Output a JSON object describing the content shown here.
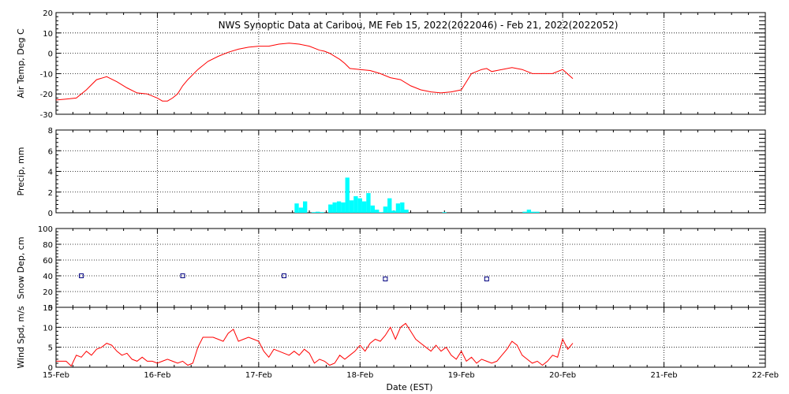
{
  "chart_data": {
    "title": "NWS Synoptic Data at Caribou, ME   Feb 15, 2022(2022046) - Feb 21, 2022(2022052)",
    "type": "multi-panel",
    "x_axis": {
      "label": "Date (EST)",
      "range_days": [
        0,
        7
      ],
      "tick_labels": [
        "15-Feb",
        "16-Feb",
        "17-Feb",
        "18-Feb",
        "19-Feb",
        "20-Feb",
        "21-Feb",
        "22-Feb"
      ]
    },
    "panels": [
      {
        "type": "line",
        "ylabel": "Air Temp, Deg C",
        "ylim": [
          -30,
          20
        ],
        "yticks": [
          -30,
          -20,
          -10,
          0,
          10,
          20
        ],
        "color": "#ff0000",
        "x": [
          0.0,
          0.1,
          0.2,
          0.3,
          0.4,
          0.5,
          0.6,
          0.7,
          0.8,
          0.9,
          1.0,
          1.05,
          1.1,
          1.15,
          1.2,
          1.25,
          1.3,
          1.4,
          1.5,
          1.6,
          1.7,
          1.8,
          1.9,
          2.0,
          2.1,
          2.2,
          2.3,
          2.4,
          2.5,
          2.6,
          2.65,
          2.7,
          2.8,
          2.85,
          2.9,
          3.0,
          3.1,
          3.2,
          3.3,
          3.4,
          3.5,
          3.6,
          3.7,
          3.8,
          3.9,
          4.0,
          4.1,
          4.2,
          4.25,
          4.3,
          4.4,
          4.5,
          4.6,
          4.7,
          4.8,
          4.9,
          5.0,
          5.1
        ],
        "values": [
          -23,
          -22.5,
          -22,
          -18,
          -13,
          -11.5,
          -14,
          -17,
          -19.5,
          -20,
          -22,
          -23.5,
          -23.5,
          -22,
          -20,
          -16,
          -13,
          -8,
          -4,
          -1.5,
          0.5,
          2,
          3,
          3.5,
          3.5,
          4.5,
          5,
          4.5,
          3.5,
          1.5,
          1,
          0,
          -3,
          -5,
          -7.5,
          -8,
          -8.5,
          -10,
          -12,
          -13,
          -16,
          -18,
          -19,
          -19.5,
          -19,
          -18,
          -10,
          -8,
          -7.5,
          -9,
          -8,
          -7,
          -8,
          -10,
          -10,
          -10,
          -8,
          -12.5
        ]
      },
      {
        "type": "bar",
        "ylabel": "Precip, mm",
        "ylim": [
          0,
          8
        ],
        "yticks": [
          0,
          2,
          4,
          6,
          8
        ],
        "color": "#00ffff",
        "bar_width_days": 0.04167,
        "x": [
          2.375,
          2.417,
          2.458,
          2.542,
          2.583,
          2.625,
          2.708,
          2.75,
          2.792,
          2.833,
          2.875,
          2.917,
          2.958,
          3.0,
          3.042,
          3.083,
          3.125,
          3.167,
          3.208,
          3.25,
          3.292,
          3.333,
          3.375,
          3.417,
          3.458,
          3.833,
          4.625,
          4.667,
          4.708,
          4.75
        ],
        "values": [
          0.9,
          0.5,
          1.1,
          0.0,
          0.1,
          0.0,
          0.8,
          1.0,
          1.1,
          1.0,
          3.4,
          1.2,
          1.6,
          1.4,
          1.1,
          1.9,
          0.7,
          0.3,
          0.0,
          0.6,
          1.4,
          0.2,
          0.9,
          1.0,
          0.3,
          0.0,
          0.1,
          0.3,
          0.1,
          0.1
        ]
      },
      {
        "type": "scatter",
        "ylabel": "Snow Dep, cm",
        "ylim": [
          0,
          100
        ],
        "yticks": [
          0,
          20,
          40,
          60,
          80,
          100
        ],
        "color": "#000080",
        "x": [
          0.25,
          1.25,
          2.25,
          3.25,
          4.25
        ],
        "values": [
          40,
          40,
          40,
          36,
          36
        ]
      },
      {
        "type": "line",
        "ylabel": "Wind Spd, m/s",
        "ylim": [
          0,
          15
        ],
        "yticks": [
          0,
          5,
          10,
          15
        ],
        "color": "#ff0000",
        "x": [
          0.0,
          0.1,
          0.15,
          0.2,
          0.25,
          0.3,
          0.35,
          0.4,
          0.45,
          0.5,
          0.55,
          0.6,
          0.65,
          0.7,
          0.75,
          0.8,
          0.85,
          0.9,
          0.95,
          1.0,
          1.05,
          1.1,
          1.15,
          1.2,
          1.25,
          1.3,
          1.35,
          1.4,
          1.45,
          1.5,
          1.55,
          1.6,
          1.65,
          1.7,
          1.75,
          1.8,
          1.85,
          1.9,
          1.95,
          2.0,
          2.05,
          2.1,
          2.15,
          2.2,
          2.25,
          2.3,
          2.35,
          2.4,
          2.45,
          2.5,
          2.55,
          2.6,
          2.65,
          2.7,
          2.75,
          2.8,
          2.85,
          2.9,
          2.95,
          3.0,
          3.05,
          3.1,
          3.15,
          3.2,
          3.25,
          3.3,
          3.35,
          3.4,
          3.45,
          3.5,
          3.55,
          3.6,
          3.65,
          3.7,
          3.75,
          3.8,
          3.85,
          3.9,
          3.95,
          4.0,
          4.05,
          4.1,
          4.15,
          4.2,
          4.25,
          4.3,
          4.35,
          4.4,
          4.45,
          4.5,
          4.55,
          4.6,
          4.65,
          4.7,
          4.75,
          4.8,
          4.85,
          4.9,
          4.95,
          5.0,
          5.05,
          5.1
        ],
        "values": [
          1.5,
          1.5,
          0.3,
          3,
          2.5,
          4,
          3,
          4.5,
          5,
          6,
          5.5,
          4,
          3,
          3.5,
          2,
          1.5,
          2.5,
          1.5,
          1.5,
          1,
          1.5,
          2,
          1.5,
          1,
          1.5,
          0.5,
          1,
          5,
          7.5,
          7.5,
          7.5,
          7,
          6.5,
          8.5,
          9.5,
          6.5,
          7,
          7.5,
          7,
          6.5,
          4,
          2.5,
          4.5,
          4,
          3.5,
          3,
          4,
          3,
          4.5,
          3.5,
          1,
          2,
          1.5,
          0.5,
          1,
          3,
          2,
          3,
          4,
          5.5,
          4,
          6,
          7,
          6.5,
          8,
          10,
          7,
          10,
          11,
          9,
          7,
          6,
          5,
          4,
          5.5,
          4,
          5,
          3,
          2,
          4,
          1.5,
          2.5,
          1,
          2,
          1.5,
          1,
          1.5,
          3,
          4.5,
          6.5,
          5.5,
          3,
          2,
          1,
          1.5,
          0.5,
          1.5,
          3,
          2.5,
          7,
          4.5,
          6
        ]
      }
    ]
  }
}
